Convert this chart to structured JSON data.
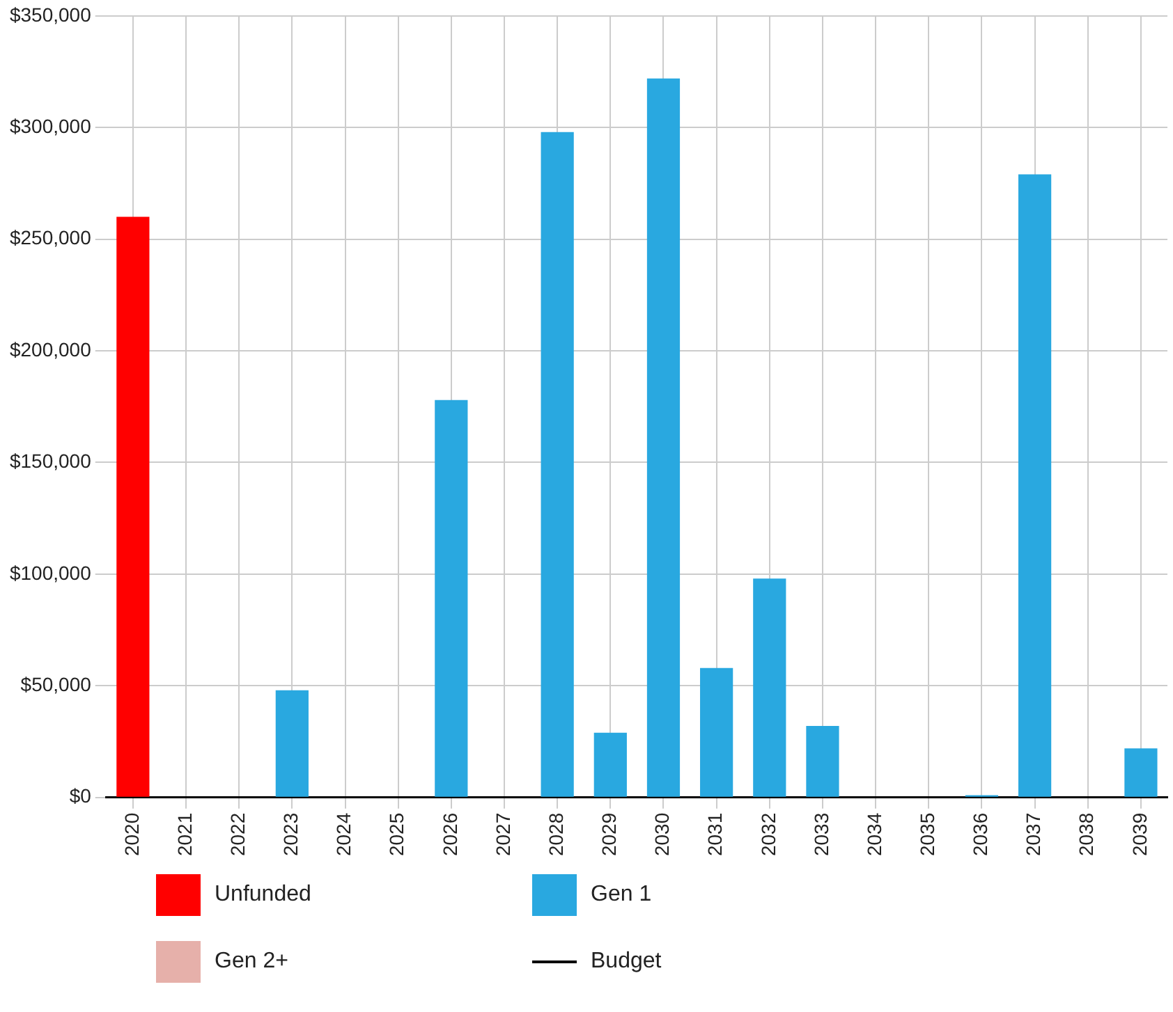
{
  "chart_data": {
    "type": "bar",
    "stacked": true,
    "grid": true,
    "legend": "bottom",
    "categories": [
      "2020",
      "2021",
      "2022",
      "2023",
      "2024",
      "2025",
      "2026",
      "2027",
      "2028",
      "2029",
      "2030",
      "2031",
      "2032",
      "2033",
      "2034",
      "2035",
      "2036",
      "2037",
      "2038",
      "2039"
    ],
    "ylim": [
      0,
      350000
    ],
    "yticks": [
      {
        "value": 0,
        "label": "$0"
      },
      {
        "value": 50000,
        "label": "$50,000"
      },
      {
        "value": 100000,
        "label": "$100,000"
      },
      {
        "value": 150000,
        "label": "$150,000"
      },
      {
        "value": 200000,
        "label": "$200,000"
      },
      {
        "value": 250000,
        "label": "$250,000"
      },
      {
        "value": 300000,
        "label": "$300,000"
      },
      {
        "value": 350000,
        "label": "$350,000"
      }
    ],
    "series": [
      {
        "name": "Unfunded",
        "color": "#ff0000",
        "values": [
          260000,
          0,
          0,
          0,
          0,
          0,
          0,
          0,
          0,
          0,
          0,
          0,
          0,
          0,
          0,
          0,
          0,
          0,
          0,
          0
        ]
      },
      {
        "name": "Gen 1",
        "color": "#29a8e0",
        "values": [
          0,
          0,
          0,
          48000,
          0,
          0,
          178000,
          0,
          298000,
          29000,
          322000,
          58000,
          98000,
          32000,
          0,
          0,
          1000,
          279000,
          0,
          22000
        ]
      },
      {
        "name": "Gen 2+",
        "color": "#e6b0aa",
        "values": [
          0,
          0,
          0,
          0,
          0,
          0,
          0,
          0,
          0,
          0,
          0,
          0,
          0,
          0,
          0,
          0,
          0,
          0,
          0,
          0
        ]
      },
      {
        "name": "Budget",
        "type": "line",
        "color": "#000000",
        "marker": "none",
        "values": [
          null,
          null,
          null,
          null,
          null,
          null,
          null,
          null,
          null,
          null,
          null,
          null,
          null,
          null,
          null,
          null,
          null,
          null,
          null,
          null
        ]
      }
    ]
  }
}
